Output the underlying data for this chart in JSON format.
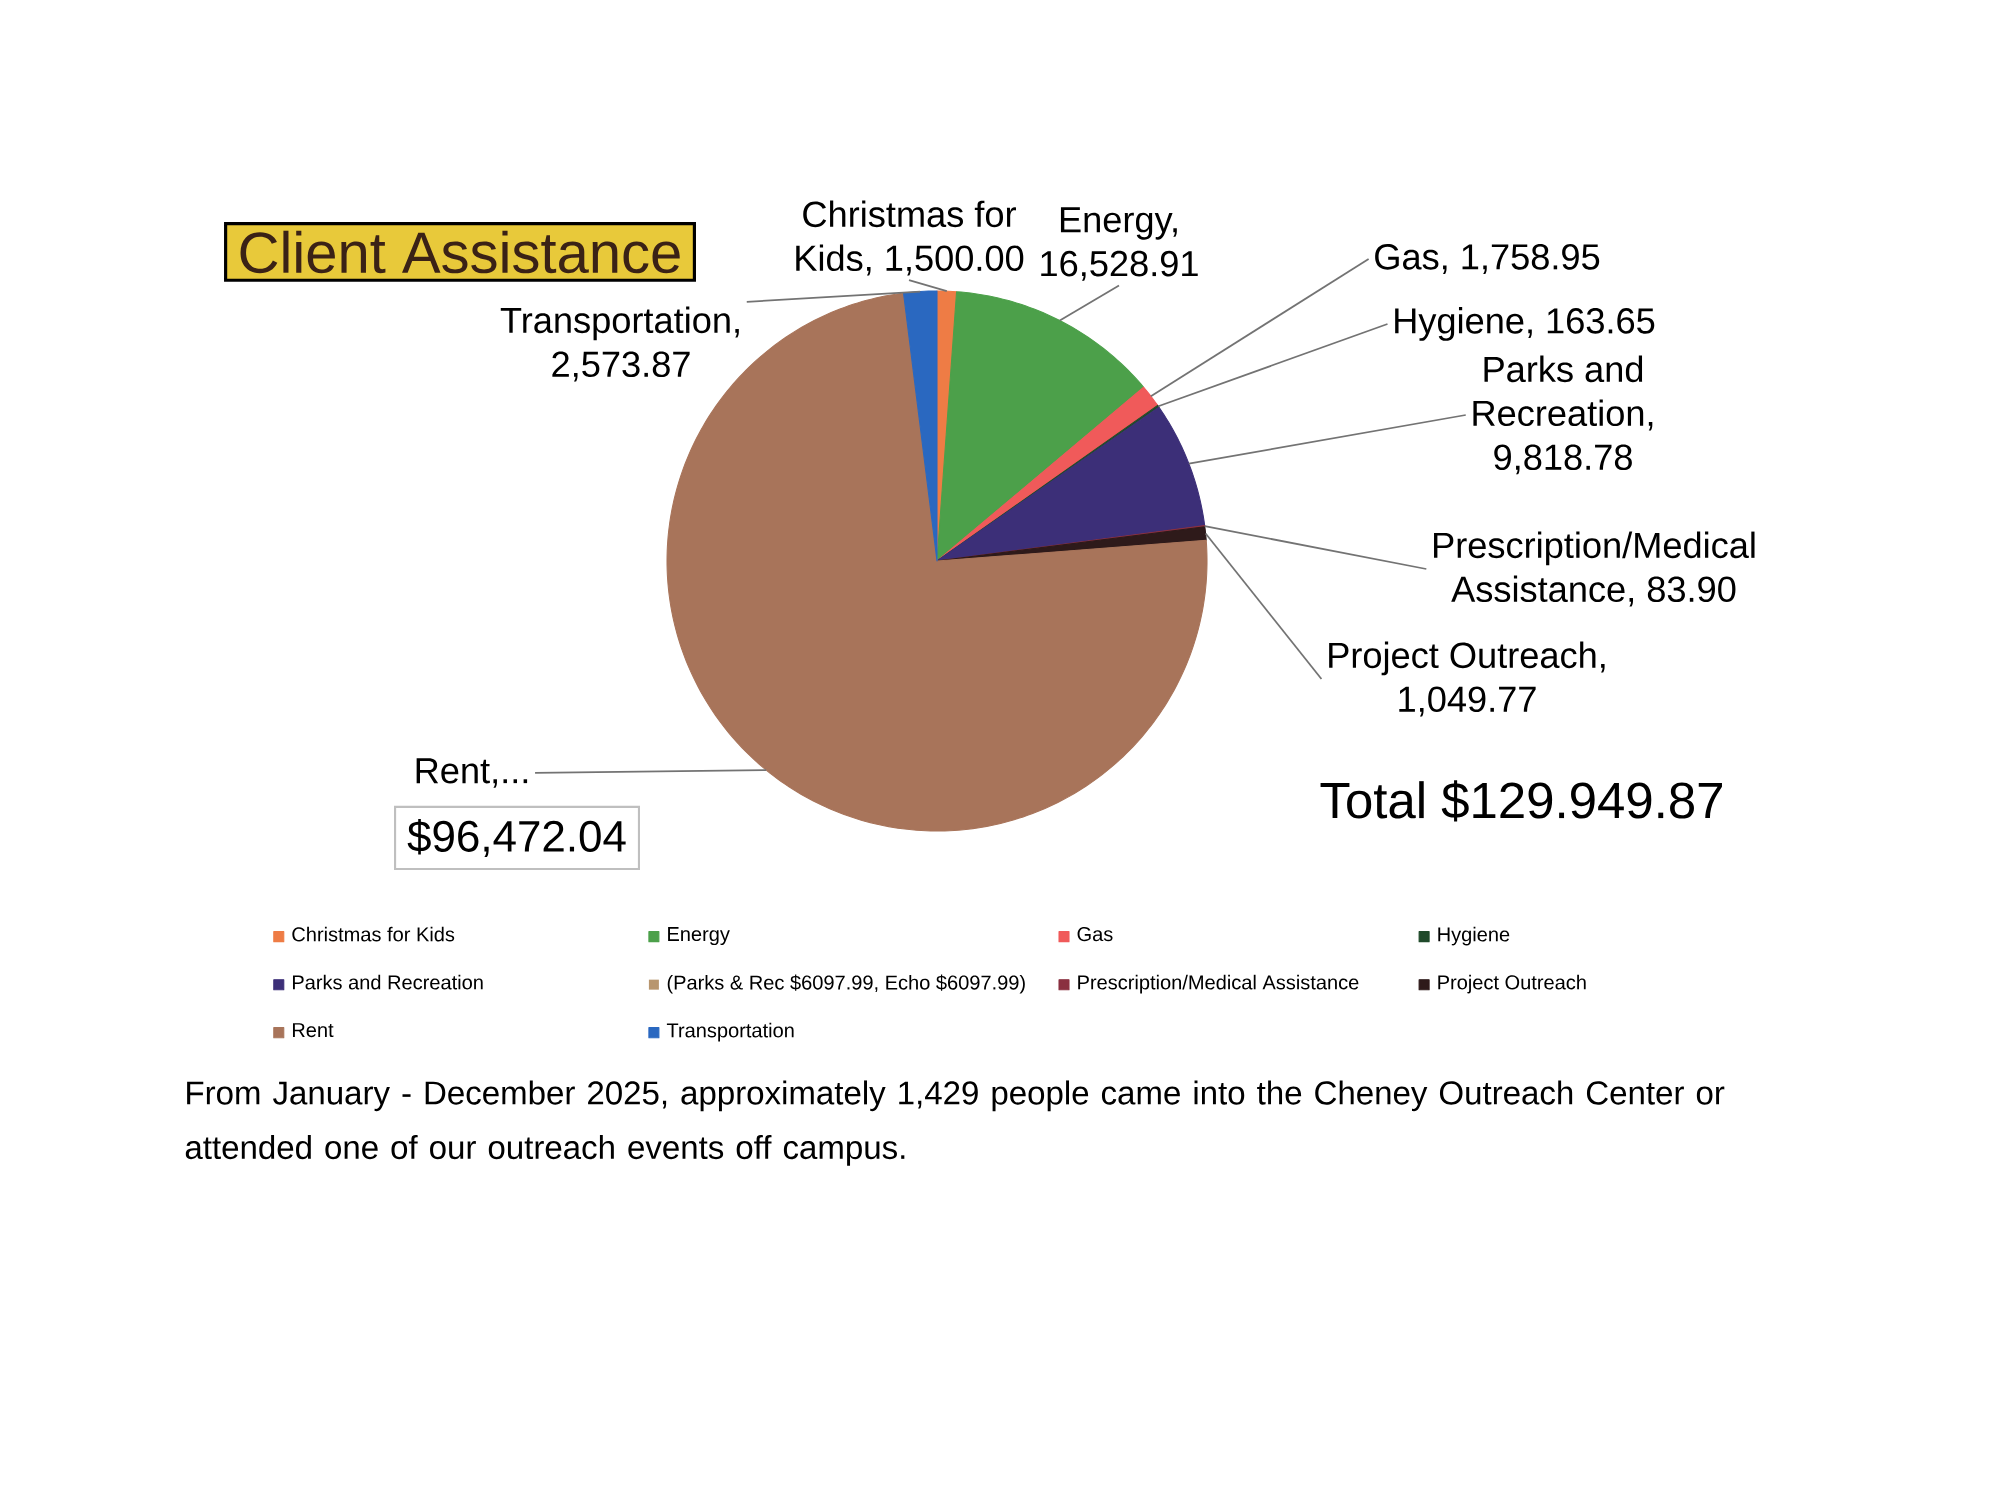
{
  "chart_data": {
    "type": "pie",
    "title": "Client Assistance",
    "categories": [
      "Christmas for Kids",
      "Energy",
      "Gas",
      "Hygiene",
      "Parks and Recreation",
      "(Parks & Rec $6097.99, Echo $6097.99)",
      "Prescription/Medical Assistance",
      "Project Outreach",
      "Rent",
      "Transportation"
    ],
    "values": [
      1500.0,
      16528.91,
      1758.95,
      163.65,
      9818.78,
      null,
      83.9,
      1049.77,
      96472.04,
      2573.87
    ],
    "colors": [
      "#ee7c45",
      "#4ca04a",
      "#f05a5a",
      "#1f4a2a",
      "#3c2f78",
      "#b8966e",
      "#8a3040",
      "#2e1a1a",
      "#a8745a",
      "#2a68c0"
    ],
    "value_labels": [
      "Christmas for Kids, 1,500.00",
      "Energy, 16,528.91",
      "Gas, 1,758.95",
      "Hygiene, 163.65",
      "Parks and Recreation, 9,818.78",
      null,
      "Prescription/Medical Assistance, 83.90",
      "Project Outreach, 1,049.77",
      "Rent,...",
      "Transportation, 2,573.87"
    ],
    "legend": "bottom",
    "annotations": [
      "$96,472.04",
      "Total $129.949.87",
      "From January - December 2025, approximately 1,429 people came into the Cheney Outreach Center or attended one of our outreach events off campus."
    ]
  }
}
